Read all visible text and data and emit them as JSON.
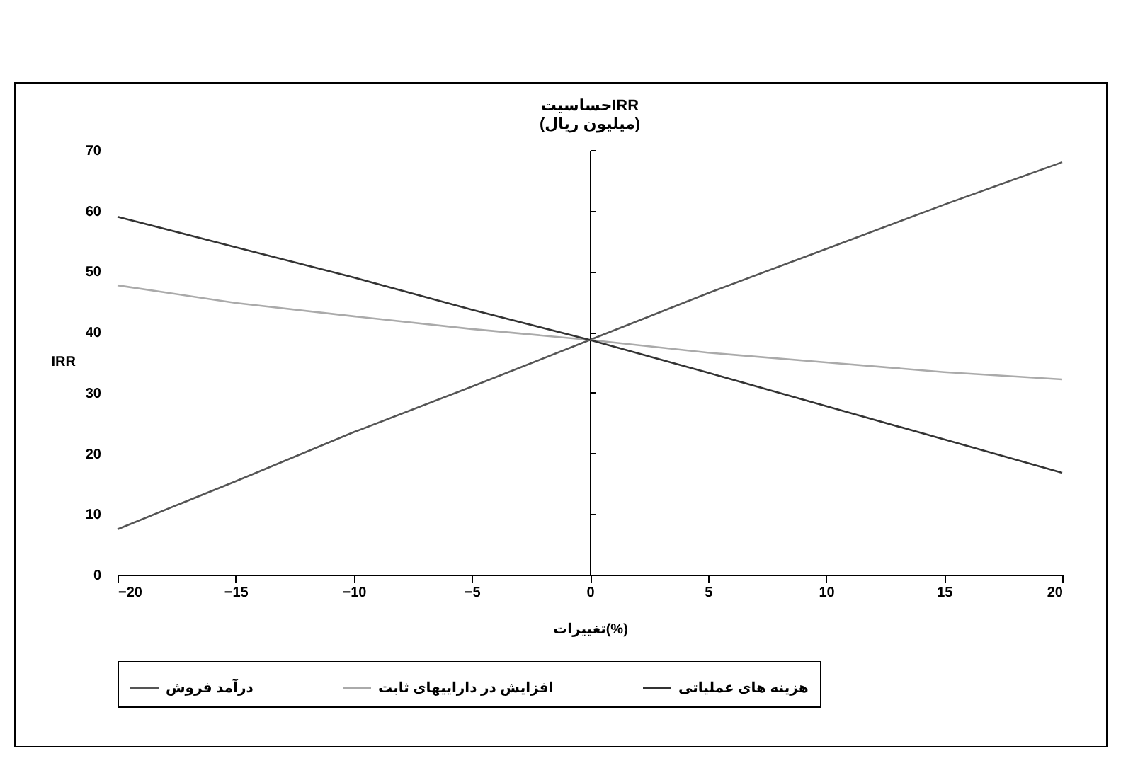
{
  "chart_data": {
    "type": "line",
    "title": "حساسیتIRR",
    "subtitle": "(میلیون ریال)",
    "xlabel": "تغییرات(%)",
    "ylabel": "IRR",
    "x": [
      -20,
      -15,
      -10,
      -5,
      0,
      5,
      10,
      15,
      20
    ],
    "series": [
      {
        "name": "درآمد فروش",
        "color": "#555555",
        "values": [
          7.5,
          15.4,
          23.5,
          31,
          38.7,
          46.4,
          53.7,
          61,
          68
        ]
      },
      {
        "name": "افزایش در داراییهای ثابت",
        "color": "#aaaaaa",
        "values": [
          47.7,
          44.8,
          42.6,
          40.5,
          38.7,
          36.6,
          35,
          33.4,
          32.2
        ]
      },
      {
        "name": "هزینه های عملیاتی",
        "color": "#333333",
        "values": [
          59,
          54,
          49,
          43.7,
          38.7,
          33.3,
          27.8,
          22.3,
          16.8
        ]
      }
    ],
    "xlim": [
      -20,
      20
    ],
    "xticks": [
      -20,
      -15,
      -10,
      -5,
      0,
      5,
      10,
      15,
      20
    ],
    "ylim": [
      0,
      70
    ],
    "yticks": [
      0,
      10,
      20,
      30,
      40,
      50,
      60,
      70
    ],
    "legend": "bottom",
    "marker": "none",
    "line_style": "solid"
  }
}
